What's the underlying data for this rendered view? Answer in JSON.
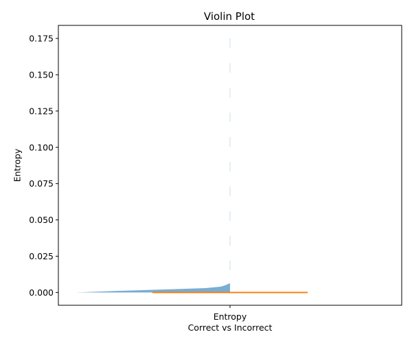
{
  "chart_data": {
    "type": "violin",
    "title": "Violin Plot",
    "xlabel": "Correct vs Incorrect",
    "ylabel": "Entropy",
    "categories": [
      "Entropy"
    ],
    "ylim": [
      -0.0088,
      0.184
    ],
    "yticks": [
      0.0,
      0.025,
      0.05,
      0.075,
      0.1,
      0.125,
      0.15,
      0.175
    ],
    "ytick_labels": [
      "0.000",
      "0.025",
      "0.050",
      "0.075",
      "0.100",
      "0.125",
      "0.150",
      "0.175"
    ],
    "grid": false,
    "series": [
      {
        "category": "Entropy",
        "median": 0.0,
        "max": 0.175,
        "min": 0.0,
        "density_profile": [
          {
            "y": 0.0,
            "half_width": 1.0
          },
          {
            "y": 0.001,
            "half_width": 0.75
          },
          {
            "y": 0.002,
            "half_width": 0.45
          },
          {
            "y": 0.003,
            "half_width": 0.16
          },
          {
            "y": 0.004,
            "half_width": 0.06
          },
          {
            "y": 0.005,
            "half_width": 0.03
          },
          {
            "y": 0.006,
            "half_width": 0.008
          },
          {
            "y": 0.0065,
            "half_width": 0.0
          }
        ]
      }
    ],
    "colors": {
      "violin_fill": "#1f77b4",
      "median_line": "#ff7f0e",
      "axes": "#000000"
    }
  }
}
